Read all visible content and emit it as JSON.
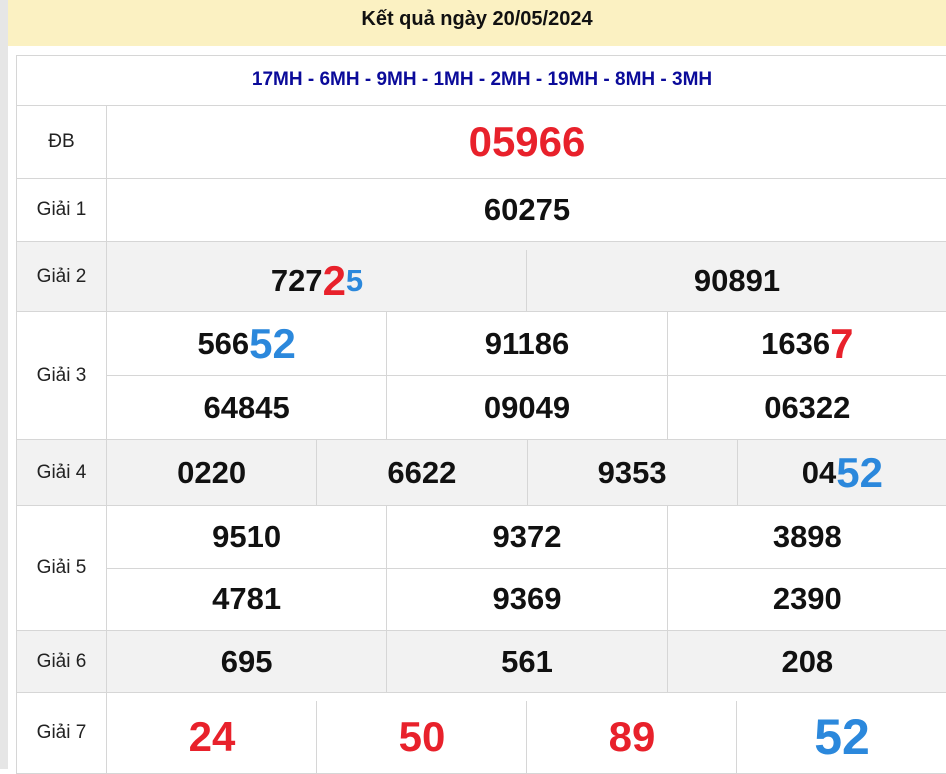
{
  "title": "Kết quả ngày 20/05/2024",
  "provinces": "17MH - 6MH - 9MH - 1MH - 2MH - 19MH - 8MH - 3MH",
  "colors": {
    "red": "#e8212b",
    "blue": "#2b88dc",
    "header_bg": "#fbf1c2",
    "provinces": "#0b0b9a"
  },
  "prizes": [
    {
      "label": "ĐB",
      "h": 72,
      "gray": false,
      "inset": false,
      "lines": [
        [
          [
            {
              "t": "05966",
              "c": "red",
              "big": true
            }
          ]
        ]
      ]
    },
    {
      "label": "Giải 1",
      "h": 62,
      "gray": false,
      "inset": false,
      "lines": [
        [
          [
            {
              "t": "60275"
            }
          ]
        ]
      ]
    },
    {
      "label": "Giải 2",
      "h": 69,
      "gray": true,
      "inset": true,
      "lines": [
        [
          [
            {
              "t": "727"
            },
            {
              "t": "2",
              "c": "red",
              "big": true
            },
            {
              "t": "5",
              "c": "blue"
            }
          ],
          [
            {
              "t": "90891"
            }
          ]
        ]
      ]
    },
    {
      "label": "Giải 3",
      "h": 127,
      "gray": false,
      "inset": false,
      "lines": [
        [
          [
            {
              "t": "566"
            },
            {
              "t": "52",
              "c": "blue",
              "big": true
            }
          ],
          [
            {
              "t": "91186"
            }
          ],
          [
            {
              "t": "1636"
            },
            {
              "t": "7",
              "c": "red",
              "big": true
            }
          ]
        ],
        [
          [
            {
              "t": "64845"
            }
          ],
          [
            {
              "t": "09049"
            }
          ],
          [
            {
              "t": "06322"
            }
          ]
        ]
      ]
    },
    {
      "label": "Giải 4",
      "h": 65,
      "gray": true,
      "inset": false,
      "lines": [
        [
          [
            {
              "t": "0220"
            }
          ],
          [
            {
              "t": "6622"
            }
          ],
          [
            {
              "t": "9353"
            }
          ],
          [
            {
              "t": "04"
            },
            {
              "t": "52",
              "c": "blue",
              "big": true
            }
          ]
        ]
      ]
    },
    {
      "label": "Giải 5",
      "h": 124,
      "gray": false,
      "inset": false,
      "lines": [
        [
          [
            {
              "t": "9510"
            }
          ],
          [
            {
              "t": "9372"
            }
          ],
          [
            {
              "t": "3898"
            }
          ]
        ],
        [
          [
            {
              "t": "4781"
            }
          ],
          [
            {
              "t": "9369"
            }
          ],
          [
            {
              "t": "2390"
            }
          ]
        ]
      ]
    },
    {
      "label": "Giải 6",
      "h": 61,
      "gray": true,
      "inset": false,
      "lines": [
        [
          [
            {
              "t": "695"
            }
          ],
          [
            {
              "t": "561"
            }
          ],
          [
            {
              "t": "208"
            }
          ]
        ]
      ]
    },
    {
      "label": "Giải 7",
      "h": 80,
      "gray": false,
      "inset": true,
      "lines": [
        [
          [
            {
              "t": "24",
              "c": "red",
              "big": true
            }
          ],
          [
            {
              "t": "50",
              "c": "red",
              "big": true
            }
          ],
          [
            {
              "t": "89",
              "c": "red",
              "big": true
            }
          ],
          [
            {
              "t": "52",
              "c": "blue",
              "big": true,
              "huge": true
            }
          ]
        ]
      ]
    }
  ]
}
